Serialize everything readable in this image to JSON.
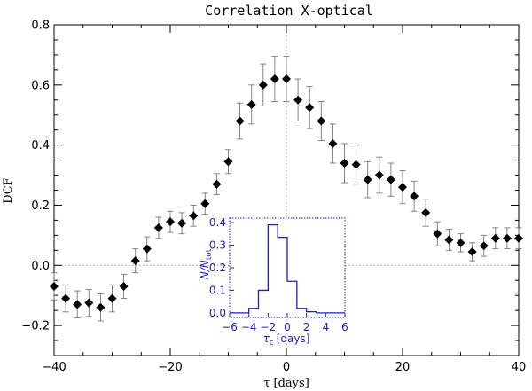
{
  "chart_data": {
    "type": "scatter",
    "title": "Correlation X-optical",
    "xlabel": "τ [days]",
    "ylabel": "DCF",
    "xlim": [
      -40,
      40
    ],
    "ylim": [
      -0.3,
      0.8
    ],
    "xticks": [
      -40,
      -20,
      0,
      20,
      40
    ],
    "yticks": [
      -0.2,
      0.0,
      0.2,
      0.4,
      0.6,
      0.8
    ],
    "reference_lines": {
      "x": 0,
      "y": 0
    },
    "series": [
      {
        "name": "DCF",
        "x": [
          -40,
          -38,
          -36,
          -34,
          -32,
          -30,
          -28,
          -26,
          -24,
          -22,
          -20,
          -18,
          -16,
          -14,
          -12,
          -10,
          -8,
          -6,
          -4,
          -2,
          0,
          2,
          4,
          6,
          8,
          10,
          12,
          14,
          16,
          18,
          20,
          22,
          24,
          26,
          28,
          30,
          32,
          34,
          36,
          38,
          40
        ],
        "y": [
          -0.07,
          -0.11,
          -0.13,
          -0.125,
          -0.14,
          -0.11,
          -0.07,
          0.015,
          0.055,
          0.125,
          0.145,
          0.14,
          0.165,
          0.205,
          0.27,
          0.345,
          0.48,
          0.535,
          0.6,
          0.62,
          0.62,
          0.55,
          0.525,
          0.48,
          0.405,
          0.34,
          0.335,
          0.285,
          0.3,
          0.285,
          0.26,
          0.23,
          0.175,
          0.105,
          0.085,
          0.075,
          0.045,
          0.065,
          0.09,
          0.09,
          0.09
        ],
        "err": [
          0.045,
          0.045,
          0.045,
          0.045,
          0.045,
          0.045,
          0.04,
          0.04,
          0.04,
          0.035,
          0.035,
          0.035,
          0.035,
          0.035,
          0.035,
          0.04,
          0.06,
          0.065,
          0.07,
          0.075,
          0.075,
          0.07,
          0.07,
          0.065,
          0.065,
          0.065,
          0.065,
          0.06,
          0.06,
          0.055,
          0.055,
          0.05,
          0.045,
          0.04,
          0.035,
          0.03,
          0.03,
          0.035,
          0.035,
          0.035,
          0.035
        ]
      }
    ],
    "inset": {
      "type": "histogram",
      "xlabel_main": "τ",
      "xlabel_sub": "c",
      "xlabel_unit": "[days]",
      "ylabel_main": "N/N",
      "ylabel_sub": "tot",
      "xlim": [
        -6,
        6
      ],
      "ylim": [
        -0.02,
        0.42
      ],
      "xticks": [
        -6,
        -4,
        -2,
        0,
        2,
        4,
        6
      ],
      "yticks": [
        0.0,
        0.1,
        0.2,
        0.3,
        0.4
      ],
      "bin_edges": [
        -6,
        -5,
        -4,
        -3,
        -2,
        -1,
        0,
        1,
        2,
        3,
        4,
        5,
        6
      ],
      "counts": [
        0.0,
        0.0,
        0.02,
        0.1,
        0.39,
        0.335,
        0.14,
        0.02,
        0.005,
        0.0,
        0.0,
        0.0
      ]
    }
  }
}
